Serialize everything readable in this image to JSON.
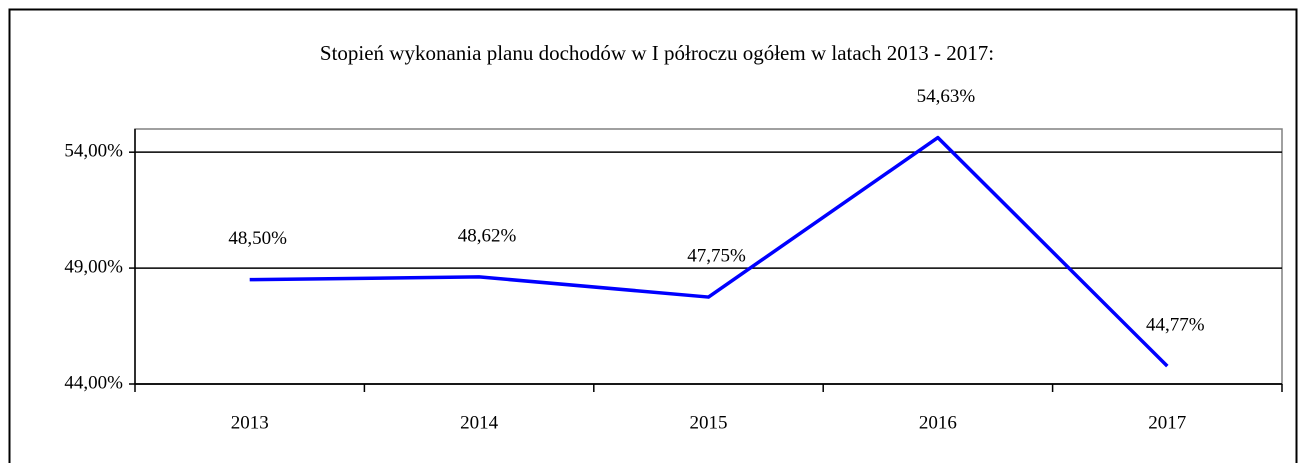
{
  "chart_data": {
    "type": "line",
    "title": "Stopień wykonania planu dochodów w I półroczu ogółem w latach 2013 - 2017:",
    "categories": [
      "2013",
      "2014",
      "2015",
      "2016",
      "2017"
    ],
    "values": [
      48.5,
      48.62,
      47.75,
      54.63,
      44.77
    ],
    "value_labels": [
      "48,50%",
      "48,62%",
      "47,75%",
      "54,63%",
      "44,77%"
    ],
    "color": "#0000ff",
    "ylim": [
      44,
      55
    ],
    "yticks": [
      {
        "value": 44,
        "label": "44,00%"
      },
      {
        "value": 49,
        "label": "49,00%"
      },
      {
        "value": 54,
        "label": "54,00%"
      }
    ],
    "grid": true
  }
}
